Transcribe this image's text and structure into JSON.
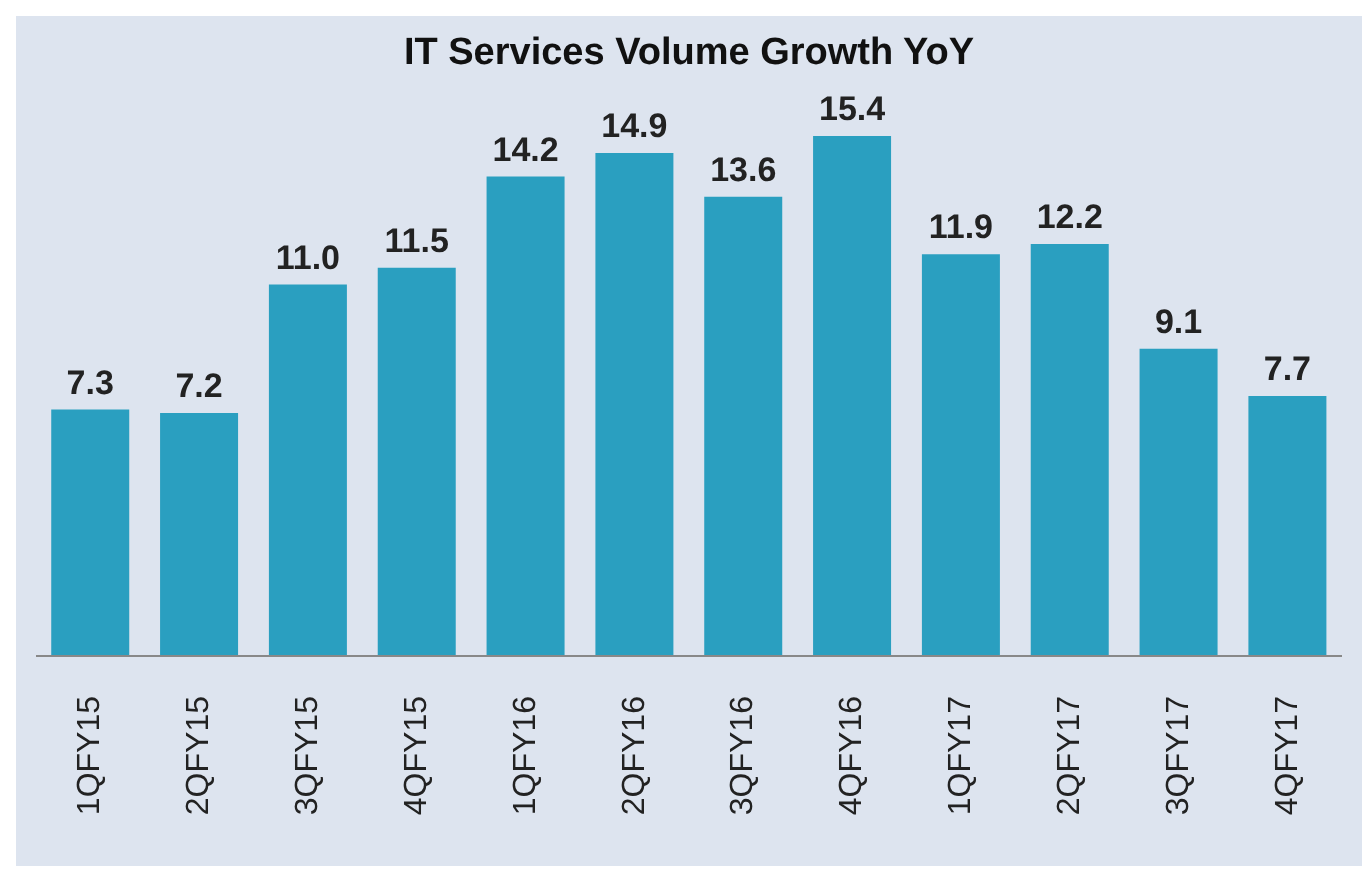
{
  "chart_data": {
    "type": "bar",
    "title": "IT Services Volume Growth YoY",
    "categories": [
      "1QFY15",
      "2QFY15",
      "3QFY15",
      "4QFY15",
      "1QFY16",
      "2QFY16",
      "3QFY16",
      "4QFY16",
      "1QFY17",
      "2QFY17",
      "3QFY17",
      "4QFY17"
    ],
    "values": [
      7.3,
      7.2,
      11.0,
      11.5,
      14.2,
      14.9,
      13.6,
      15.4,
      11.9,
      12.2,
      9.1,
      7.7
    ],
    "value_labels": [
      "7.3",
      "7.2",
      "11.0",
      "11.5",
      "14.2",
      "14.9",
      "13.6",
      "15.4",
      "11.9",
      "12.2",
      "9.1",
      "7.7"
    ],
    "color": "#2a9fc0",
    "grid": false,
    "legend": false
  }
}
